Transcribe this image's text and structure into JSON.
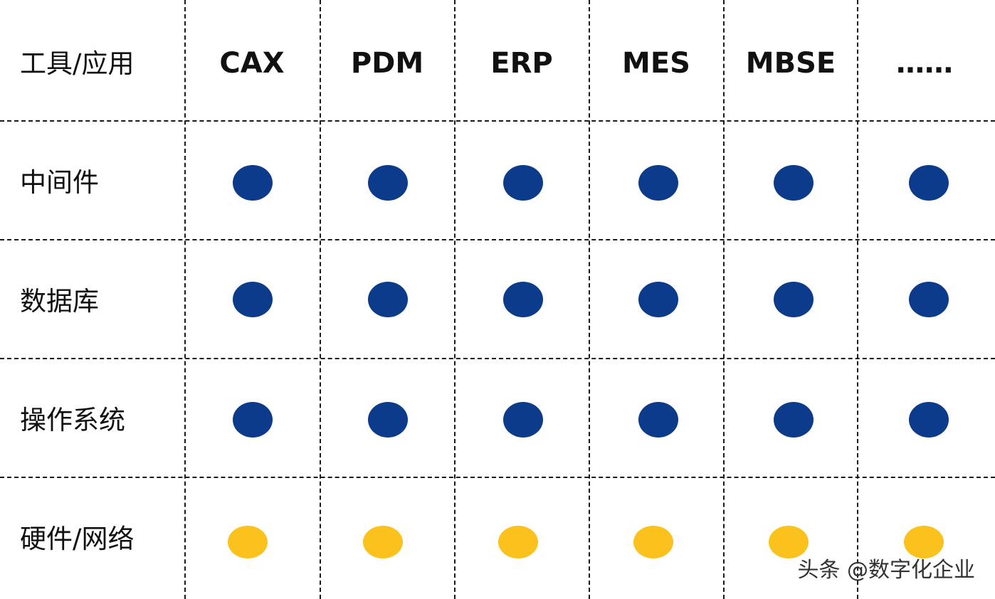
{
  "header_label": "工具/应用",
  "columns": [
    "CAX",
    "PDM",
    "ERP",
    "MES",
    "MBSE",
    "……"
  ],
  "rows": [
    {
      "label": "中间件",
      "status": "supported"
    },
    {
      "label": "数据库",
      "status": "supported"
    },
    {
      "label": "操作系统",
      "status": "supported"
    },
    {
      "label": "硬件/网络",
      "status": "partial"
    }
  ],
  "colors": {
    "supported": "#0d3b8c",
    "partial": "#fbc11c"
  },
  "watermark": "头条 @数字化企业"
}
